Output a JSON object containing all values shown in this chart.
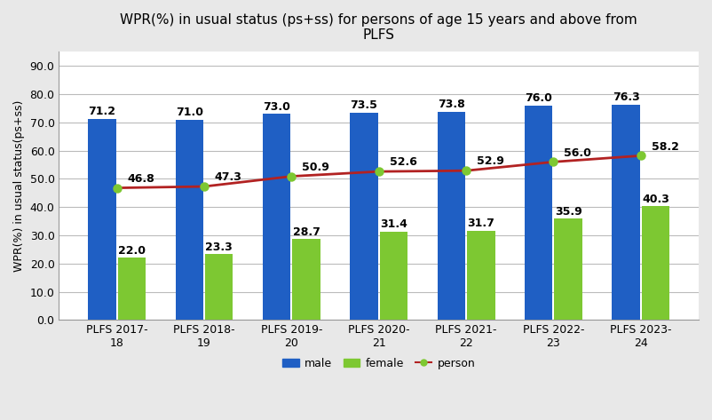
{
  "title": "WPR(%) in usual status (ps+ss) for persons of age 15 years and above from\nPLFS",
  "categories": [
    "PLFS 2017-\n18",
    "PLFS 2018-\n19",
    "PLFS 2019-\n20",
    "PLFS 2020-\n21",
    "PLFS 2021-\n22",
    "PLFS 2022-\n23",
    "PLFS 2023-\n24"
  ],
  "male": [
    71.2,
    71.0,
    73.0,
    73.5,
    73.8,
    76.0,
    76.3
  ],
  "female": [
    22.0,
    23.3,
    28.7,
    31.4,
    31.7,
    35.9,
    40.3
  ],
  "person": [
    46.8,
    47.3,
    50.9,
    52.6,
    52.9,
    56.0,
    58.2
  ],
  "male_color": "#1F5FC4",
  "female_color": "#7DC832",
  "person_color": "#B22222",
  "ylabel": "WPR(%) in usual status(ps+ss)",
  "ylim": [
    0,
    95
  ],
  "yticks": [
    0.0,
    10.0,
    20.0,
    30.0,
    40.0,
    50.0,
    60.0,
    70.0,
    80.0,
    90.0
  ],
  "fig_facecolor": "#E8E8E8",
  "plot_facecolor": "#FFFFFF",
  "title_fontsize": 11,
  "axis_fontsize": 9,
  "bar_label_fontsize": 9,
  "line_marker": "o",
  "line_markersize": 6,
  "bar_width": 0.32,
  "bar_gap": 0.02
}
